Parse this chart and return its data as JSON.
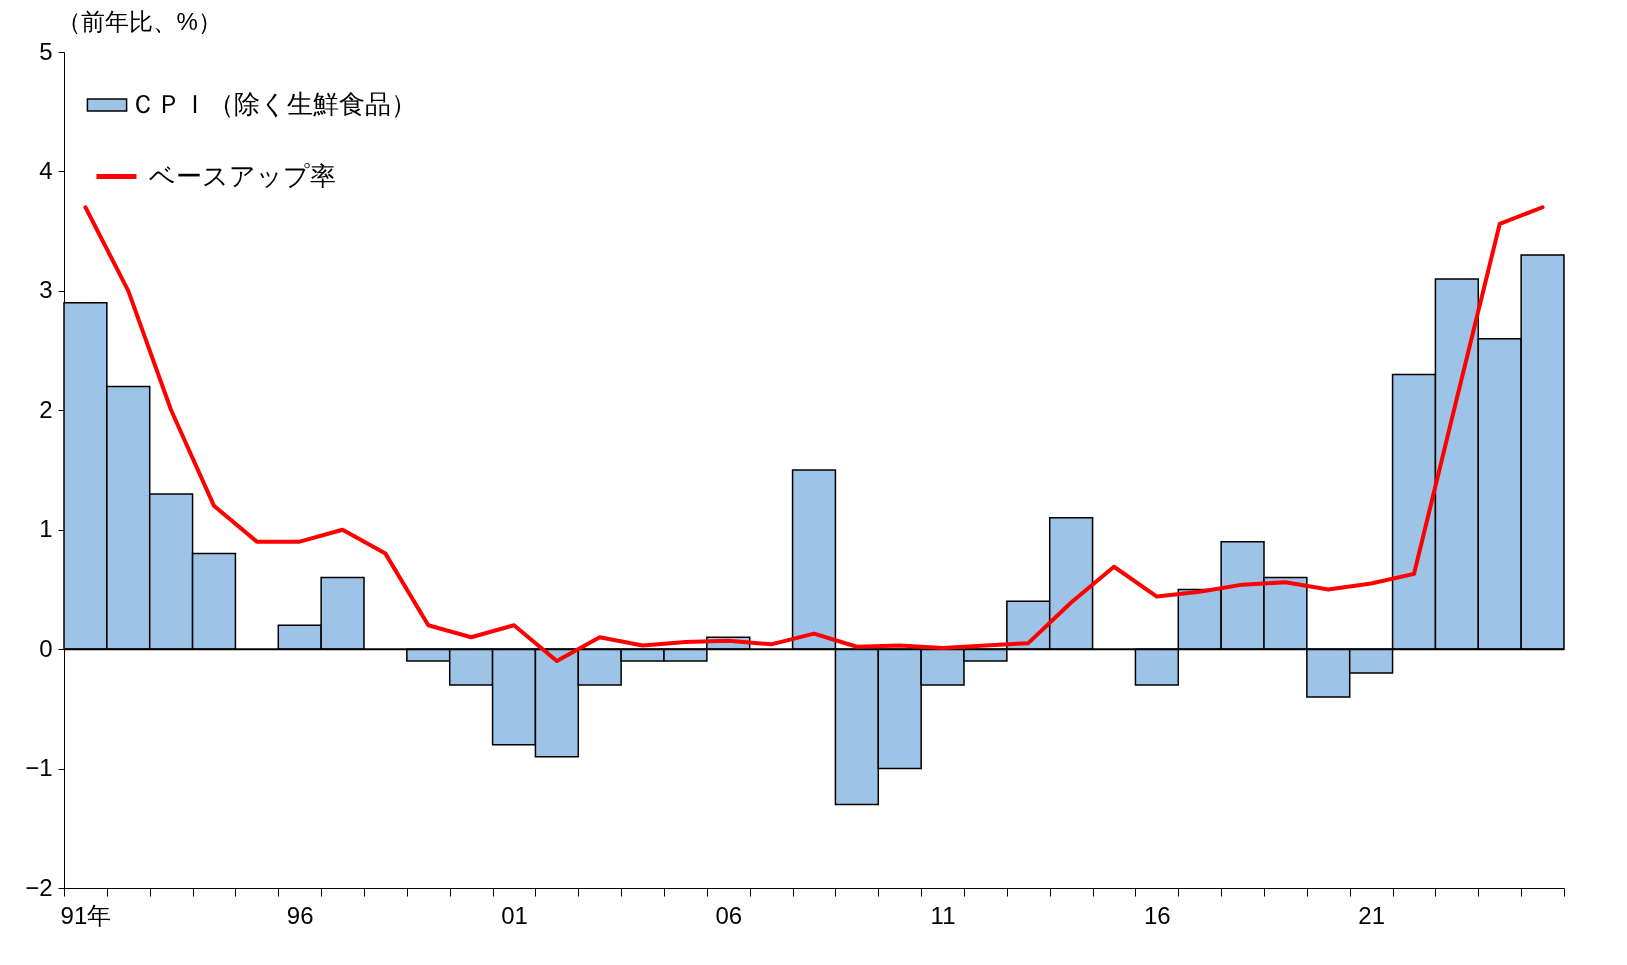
{
  "chart_data": {
    "type": "bar",
    "ylabel": "（前年比、%）",
    "categories": [
      "91年",
      null,
      null,
      null,
      null,
      "96",
      null,
      null,
      null,
      null,
      "01",
      null,
      null,
      null,
      null,
      "06",
      null,
      null,
      null,
      null,
      "11",
      null,
      null,
      null,
      null,
      "16",
      null,
      null,
      null,
      null,
      "21",
      null,
      null,
      null,
      null
    ],
    "series": [
      {
        "name": "ＣＰＩ（除く生鮮食品）",
        "color": "#9dc3e6",
        "values": [
          2.9,
          2.2,
          1.3,
          0.8,
          null,
          0.2,
          0.6,
          null,
          -0.1,
          -0.3,
          -0.8,
          -0.9,
          -0.3,
          -0.1,
          -0.1,
          0.1,
          null,
          1.5,
          -1.3,
          -1.0,
          -0.3,
          -0.1,
          0.4,
          1.1,
          null,
          -0.3,
          0.5,
          0.9,
          0.6,
          -0.4,
          -0.2,
          2.3,
          3.1,
          2.6,
          3.3
        ]
      },
      {
        "name": "ベースアップ率",
        "type": "line",
        "color": "#ff0000",
        "values": [
          3.7,
          3.0,
          2.0,
          1.2,
          0.9,
          0.9,
          1.0,
          0.8,
          0.2,
          0.1,
          0.2,
          -0.1,
          0.1,
          0.03,
          0.06,
          0.07,
          0.04,
          0.13,
          0.02,
          0.03,
          0.01,
          0.03,
          0.05,
          0.39,
          0.69,
          0.44,
          0.48,
          0.54,
          0.56,
          0.5,
          0.55,
          0.63,
          2.1,
          3.56,
          3.7
        ]
      }
    ],
    "ylim": [
      -2,
      5
    ],
    "yticks": [
      -2,
      -1,
      0,
      1,
      2,
      3,
      4,
      5
    ],
    "grid": false,
    "legend": "top left",
    "line_style": "solid",
    "marker": "none",
    "ref_lines": [
      {
        "axis": "y",
        "value": 0,
        "color": "#000000"
      }
    ]
  }
}
